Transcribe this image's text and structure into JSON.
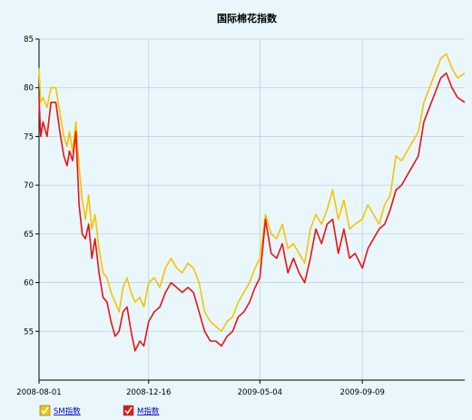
{
  "chart_data": {
    "type": "line",
    "title": "国际棉花指数",
    "xlabel": "",
    "ylabel": "",
    "x_ticks": [
      "2008-08-01",
      "2008-12-16",
      "2009-05-04",
      "2009-09-09"
    ],
    "x_range": [
      "2008-08-01",
      "2010-01-15"
    ],
    "ylim": [
      50,
      85
    ],
    "y_ticks": [
      55,
      60,
      65,
      70,
      75,
      80,
      85
    ],
    "grid": true,
    "legend_position": "bottom-left",
    "series": [
      {
        "name": "SM指数",
        "color": "#f5c400",
        "x": [
          "2008-08-01",
          "2008-08-03",
          "2008-08-06",
          "2008-08-11",
          "2008-08-16",
          "2008-08-22",
          "2008-08-27",
          "2008-09-01",
          "2008-09-05",
          "2008-09-08",
          "2008-09-12",
          "2008-09-16",
          "2008-09-20",
          "2008-09-24",
          "2008-09-28",
          "2008-10-02",
          "2008-10-06",
          "2008-10-10",
          "2008-10-15",
          "2008-10-20",
          "2008-10-25",
          "2008-10-30",
          "2008-11-04",
          "2008-11-09",
          "2008-11-14",
          "2008-11-19",
          "2008-11-24",
          "2008-11-29",
          "2008-12-05",
          "2008-12-10",
          "2008-12-16",
          "2008-12-23",
          "2008-12-30",
          "2009-01-06",
          "2009-01-13",
          "2009-01-20",
          "2009-01-27",
          "2009-02-03",
          "2009-02-10",
          "2009-02-17",
          "2009-02-24",
          "2009-03-03",
          "2009-03-10",
          "2009-03-17",
          "2009-03-24",
          "2009-03-31",
          "2009-04-07",
          "2009-04-14",
          "2009-04-21",
          "2009-04-28",
          "2009-05-04",
          "2009-05-11",
          "2009-05-18",
          "2009-05-25",
          "2009-06-01",
          "2009-06-08",
          "2009-06-15",
          "2009-06-22",
          "2009-06-29",
          "2009-07-06",
          "2009-07-13",
          "2009-07-20",
          "2009-07-27",
          "2009-08-03",
          "2009-08-10",
          "2009-08-17",
          "2009-08-24",
          "2009-08-31",
          "2009-09-09",
          "2009-09-16",
          "2009-09-23",
          "2009-09-30",
          "2009-10-07",
          "2009-10-14",
          "2009-10-21",
          "2009-10-28",
          "2009-11-04",
          "2009-11-11",
          "2009-11-18",
          "2009-11-25",
          "2009-12-02",
          "2009-12-09",
          "2009-12-16",
          "2009-12-23",
          "2009-12-30",
          "2010-01-06",
          "2010-01-15"
        ],
        "values": [
          82.0,
          78.5,
          79.0,
          78.0,
          80.0,
          80.0,
          77.5,
          75.0,
          74.0,
          75.5,
          73.5,
          76.5,
          72.0,
          68.5,
          66.5,
          69.0,
          65.5,
          67.0,
          63.5,
          61.0,
          60.5,
          59.0,
          58.0,
          57.0,
          59.5,
          60.5,
          59.0,
          58.0,
          58.5,
          57.5,
          60.0,
          60.5,
          59.5,
          61.5,
          62.5,
          61.5,
          61.0,
          62.0,
          61.5,
          60.0,
          57.0,
          56.0,
          55.5,
          55.0,
          56.0,
          56.5,
          58.0,
          59.0,
          60.0,
          61.5,
          62.5,
          67.0,
          65.0,
          64.5,
          66.0,
          63.5,
          64.0,
          63.0,
          62.0,
          65.5,
          67.0,
          66.0,
          67.5,
          69.5,
          66.5,
          68.5,
          65.5,
          66.0,
          66.5,
          68.0,
          67.0,
          66.0,
          68.0,
          69.0,
          73.0,
          72.5,
          73.5,
          74.5,
          75.5,
          78.5,
          80.0,
          81.5,
          83.0,
          83.5,
          82.0,
          81.0,
          81.5
        ]
      },
      {
        "name": "M指数",
        "color": "#ee1111",
        "x": [
          "2008-08-01",
          "2008-08-03",
          "2008-08-06",
          "2008-08-11",
          "2008-08-16",
          "2008-08-22",
          "2008-08-27",
          "2008-09-01",
          "2008-09-05",
          "2008-09-08",
          "2008-09-12",
          "2008-09-16",
          "2008-09-20",
          "2008-09-24",
          "2008-09-28",
          "2008-10-02",
          "2008-10-06",
          "2008-10-10",
          "2008-10-15",
          "2008-10-20",
          "2008-10-25",
          "2008-10-30",
          "2008-11-04",
          "2008-11-09",
          "2008-11-14",
          "2008-11-19",
          "2008-11-24",
          "2008-11-29",
          "2008-12-05",
          "2008-12-10",
          "2008-12-16",
          "2008-12-23",
          "2008-12-30",
          "2009-01-06",
          "2009-01-13",
          "2009-01-20",
          "2009-01-27",
          "2009-02-03",
          "2009-02-10",
          "2009-02-17",
          "2009-02-24",
          "2009-03-03",
          "2009-03-10",
          "2009-03-17",
          "2009-03-24",
          "2009-03-31",
          "2009-04-07",
          "2009-04-14",
          "2009-04-21",
          "2009-04-28",
          "2009-05-04",
          "2009-05-11",
          "2009-05-18",
          "2009-05-25",
          "2009-06-01",
          "2009-06-08",
          "2009-06-15",
          "2009-06-22",
          "2009-06-29",
          "2009-07-06",
          "2009-07-13",
          "2009-07-20",
          "2009-07-27",
          "2009-08-03",
          "2009-08-10",
          "2009-08-17",
          "2009-08-24",
          "2009-08-31",
          "2009-09-09",
          "2009-09-16",
          "2009-09-23",
          "2009-09-30",
          "2009-10-07",
          "2009-10-14",
          "2009-10-21",
          "2009-10-28",
          "2009-11-04",
          "2009-11-11",
          "2009-11-18",
          "2009-11-25",
          "2009-12-02",
          "2009-12-09",
          "2009-12-16",
          "2009-12-23",
          "2009-12-30",
          "2010-01-06",
          "2010-01-15"
        ],
        "values": [
          79.0,
          75.0,
          76.5,
          75.0,
          78.5,
          78.5,
          75.5,
          73.0,
          72.0,
          73.5,
          72.5,
          75.5,
          68.0,
          65.0,
          64.5,
          66.0,
          62.5,
          64.5,
          61.0,
          58.5,
          58.0,
          56.0,
          54.5,
          55.0,
          57.0,
          57.5,
          55.0,
          53.0,
          54.0,
          53.5,
          56.0,
          57.0,
          57.5,
          59.0,
          60.0,
          59.5,
          59.0,
          59.5,
          59.0,
          57.0,
          55.0,
          54.0,
          54.0,
          53.5,
          54.5,
          55.0,
          56.5,
          57.0,
          58.0,
          59.5,
          60.5,
          66.5,
          63.0,
          62.5,
          64.0,
          61.0,
          62.5,
          61.0,
          60.0,
          62.5,
          65.5,
          64.0,
          66.0,
          66.5,
          63.0,
          65.5,
          62.5,
          63.0,
          61.5,
          63.5,
          64.5,
          65.5,
          66.0,
          67.5,
          69.5,
          70.0,
          71.0,
          72.0,
          73.0,
          76.5,
          78.0,
          79.5,
          81.0,
          81.5,
          80.0,
          79.0,
          78.5
        ]
      }
    ]
  }
}
